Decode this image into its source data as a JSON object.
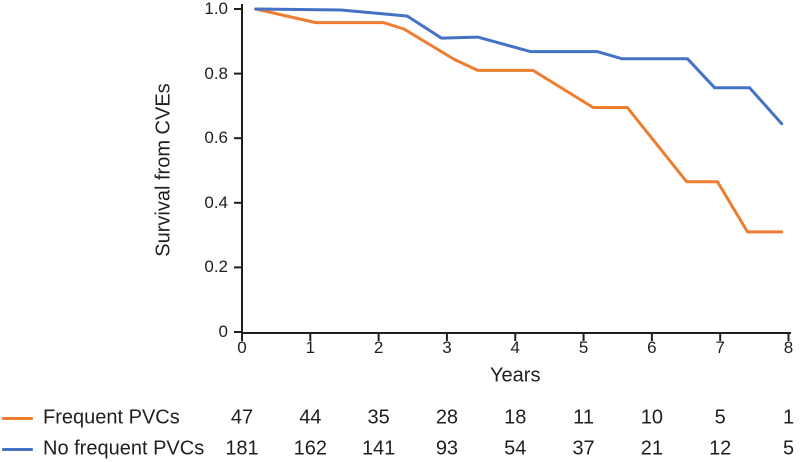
{
  "colors": {
    "orange": "#ED7D31",
    "blue": "#4472C4",
    "axis": "#1F1F1F",
    "text": "#1F1F1F",
    "background": "#FFFFFF"
  },
  "chart_data": {
    "type": "line",
    "subtype": "kaplan-meier-survival-curve",
    "title": "",
    "xlabel": "Years",
    "ylabel": "Survival from CVEs",
    "xlim": [
      0,
      8
    ],
    "ylim": [
      0,
      1.0
    ],
    "xticks": [
      0,
      1,
      2,
      3,
      4,
      5,
      6,
      7,
      8
    ],
    "yticks": [
      1.0,
      0.8,
      0.6,
      0.4,
      0.2,
      0
    ],
    "ytick_labels": [
      "1.0",
      "0.8",
      "0.6",
      "0.4",
      "0.2",
      "0"
    ],
    "grid": false,
    "legend_position": "bottom-left",
    "series": [
      {
        "name": "Frequent PVCs",
        "color": "#ED7D31",
        "points": [
          [
            0.2,
            1.0
          ],
          [
            1.08,
            0.958
          ],
          [
            2.07,
            0.958
          ],
          [
            2.37,
            0.938
          ],
          [
            3.1,
            0.845
          ],
          [
            3.45,
            0.81
          ],
          [
            4.26,
            0.81
          ],
          [
            5.14,
            0.695
          ],
          [
            5.64,
            0.695
          ],
          [
            6.51,
            0.465
          ],
          [
            6.96,
            0.465
          ],
          [
            7.4,
            0.31
          ],
          [
            7.9,
            0.31
          ]
        ]
      },
      {
        "name": "No frequent PVCs",
        "color": "#4472C4",
        "points": [
          [
            0.2,
            1.0
          ],
          [
            1.45,
            0.997
          ],
          [
            2.42,
            0.978
          ],
          [
            2.92,
            0.91
          ],
          [
            3.45,
            0.913
          ],
          [
            4.22,
            0.868
          ],
          [
            5.2,
            0.868
          ],
          [
            5.56,
            0.846
          ],
          [
            6.52,
            0.846
          ],
          [
            6.92,
            0.756
          ],
          [
            7.43,
            0.756
          ],
          [
            7.9,
            0.645
          ]
        ]
      }
    ],
    "at_risk": {
      "times": [
        0,
        1,
        2,
        3,
        4,
        5,
        6,
        7,
        8
      ],
      "rows": [
        {
          "label": "Frequent PVCs",
          "color": "#ED7D31",
          "counts": [
            "47",
            "44",
            "35",
            "28",
            "18",
            "11",
            "10",
            "5",
            "1"
          ]
        },
        {
          "label": "No frequent PVCs",
          "color": "#4472C4",
          "counts": [
            "181",
            "162",
            "141",
            "93",
            "54",
            "37",
            "21",
            "12",
            "5"
          ]
        }
      ]
    }
  }
}
